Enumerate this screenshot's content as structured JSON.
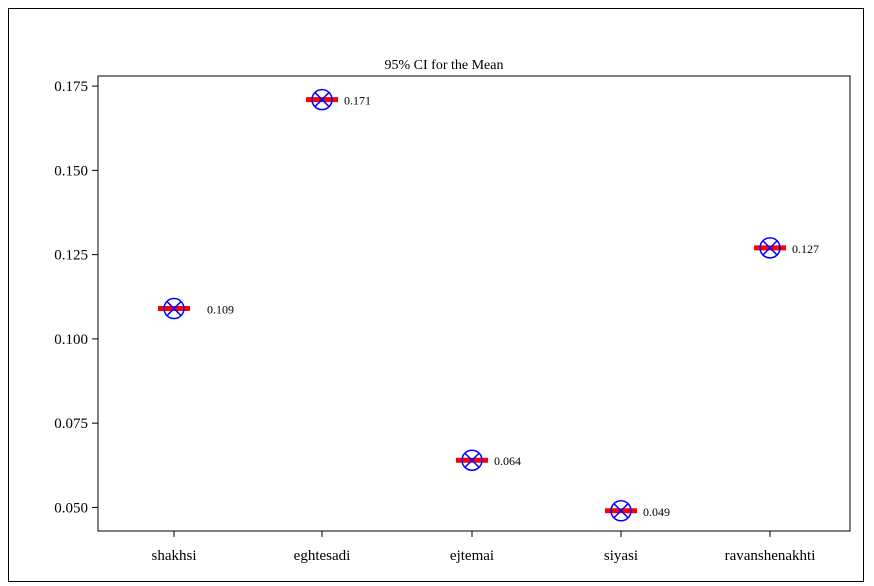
{
  "chart_data": {
    "type": "scatter",
    "title": "95% CI for the Mean",
    "xlabel": "",
    "ylabel": "",
    "categories": [
      "shakhsi",
      "eghtesadi",
      "ejtemai",
      "siyasi",
      "ravanshenakhti"
    ],
    "values": [
      0.109,
      0.171,
      0.064,
      0.049,
      0.127
    ],
    "value_labels": [
      "0.109",
      "0.171",
      "0.064",
      "0.049",
      "0.127"
    ],
    "ylim": [
      0.043,
      0.178
    ],
    "yticks": [
      0.05,
      0.075,
      0.1,
      0.125,
      0.15,
      0.175
    ],
    "ytick_labels": [
      "0.050",
      "0.075",
      "0.100",
      "0.125",
      "0.150",
      "0.175"
    ],
    "grid": false,
    "colors": {
      "marker": "#0000ff",
      "mean_bar": "#ff0000",
      "axis": "#000000"
    }
  }
}
